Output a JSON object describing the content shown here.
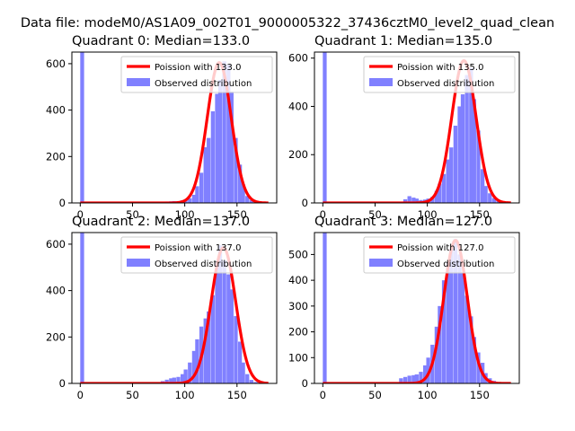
{
  "figure": {
    "suptitle": "Data file: modeM0/AS1A09_002T01_9000005322_37436cztM0_level2_quad_clean"
  },
  "chart_data": [
    {
      "type": "bar",
      "title": "Quadrant 0: Median=133.0",
      "xlim": [
        -8,
        188
      ],
      "ylim": [
        0,
        650
      ],
      "xticks": [
        0,
        50,
        100,
        150
      ],
      "yticks": [
        0,
        200,
        400,
        600
      ],
      "legend_placement": "top-right",
      "colors": {
        "hist": "#8080ff",
        "fit": "#ff0000"
      },
      "series": [
        {
          "name": "Poission with 133.0",
          "kind": "line",
          "mean": 133.0,
          "peak": 605,
          "sigma": 11.5,
          "x_range": [
            0,
            180
          ]
        },
        {
          "name": "Observed distribution",
          "kind": "hist",
          "bin_width": 3.7,
          "bars": [
            [
              0,
              650
            ],
            [
              77,
              5
            ],
            [
              81,
              6
            ],
            [
              85,
              7
            ],
            [
              88,
              8
            ],
            [
              92,
              8
            ],
            [
              96,
              11
            ],
            [
              99,
              14
            ],
            [
              103,
              20
            ],
            [
              107,
              35
            ],
            [
              110,
              72
            ],
            [
              114,
              130
            ],
            [
              118,
              240
            ],
            [
              121,
              280
            ],
            [
              125,
              395
            ],
            [
              129,
              470
            ],
            [
              132,
              530
            ],
            [
              136,
              610
            ],
            [
              140,
              595
            ],
            [
              143,
              480
            ],
            [
              147,
              280
            ],
            [
              151,
              165
            ],
            [
              154,
              80
            ],
            [
              158,
              30
            ],
            [
              162,
              12
            ],
            [
              166,
              5
            ],
            [
              170,
              3
            ]
          ]
        }
      ]
    },
    {
      "type": "bar",
      "title": "Quadrant 1: Median=135.0",
      "xlim": [
        -8,
        188
      ],
      "ylim": [
        0,
        625
      ],
      "xticks": [
        0,
        50,
        100,
        150
      ],
      "yticks": [
        0,
        200,
        400,
        600
      ],
      "legend_placement": "top-right",
      "colors": {
        "hist": "#8080ff",
        "fit": "#ff0000"
      },
      "series": [
        {
          "name": "Poission with 135.0",
          "kind": "line",
          "mean": 135.0,
          "peak": 590,
          "sigma": 11.6,
          "x_range": [
            0,
            180
          ]
        },
        {
          "name": "Observed distribution",
          "kind": "hist",
          "bin_width": 3.7,
          "bars": [
            [
              0,
              625
            ],
            [
              77,
              15
            ],
            [
              81,
              28
            ],
            [
              85,
              22
            ],
            [
              88,
              18
            ],
            [
              92,
              12
            ],
            [
              96,
              14
            ],
            [
              99,
              18
            ],
            [
              103,
              25
            ],
            [
              107,
              50
            ],
            [
              110,
              80
            ],
            [
              114,
              120
            ],
            [
              118,
              180
            ],
            [
              121,
              230
            ],
            [
              125,
              320
            ],
            [
              129,
              400
            ],
            [
              132,
              450
            ],
            [
              136,
              530
            ],
            [
              140,
              560
            ],
            [
              143,
              430
            ],
            [
              147,
              300
            ],
            [
              151,
              140
            ],
            [
              154,
              70
            ],
            [
              158,
              40
            ],
            [
              162,
              20
            ],
            [
              166,
              8
            ]
          ]
        }
      ]
    },
    {
      "type": "bar",
      "title": "Quadrant 2: Median=137.0",
      "xlim": [
        -8,
        188
      ],
      "ylim": [
        0,
        650
      ],
      "xticks": [
        0,
        50,
        100,
        150
      ],
      "yticks": [
        0,
        200,
        400,
        600
      ],
      "legend_placement": "top-right",
      "colors": {
        "hist": "#8080ff",
        "fit": "#ff0000"
      },
      "series": [
        {
          "name": "Poission with 137.0",
          "kind": "line",
          "mean": 137.0,
          "peak": 585,
          "sigma": 11.7,
          "x_range": [
            0,
            180
          ]
        },
        {
          "name": "Observed distribution",
          "kind": "hist",
          "bin_width": 3.7,
          "bars": [
            [
              0,
              650
            ],
            [
              77,
              10
            ],
            [
              81,
              16
            ],
            [
              85,
              22
            ],
            [
              88,
              25
            ],
            [
              92,
              28
            ],
            [
              96,
              40
            ],
            [
              99,
              60
            ],
            [
              103,
              90
            ],
            [
              107,
              140
            ],
            [
              110,
              190
            ],
            [
              114,
              245
            ],
            [
              118,
              280
            ],
            [
              121,
              310
            ],
            [
              125,
              380
            ],
            [
              129,
              520
            ],
            [
              132,
              595
            ],
            [
              136,
              530
            ],
            [
              140,
              470
            ],
            [
              143,
              405
            ],
            [
              147,
              290
            ],
            [
              151,
              180
            ],
            [
              154,
              90
            ],
            [
              158,
              40
            ],
            [
              162,
              15
            ],
            [
              166,
              6
            ]
          ]
        }
      ]
    },
    {
      "type": "bar",
      "title": "Quadrant 3: Median=127.0",
      "xlim": [
        -8,
        188
      ],
      "ylim": [
        0,
        585
      ],
      "xticks": [
        0,
        50,
        100,
        150
      ],
      "yticks": [
        0,
        100,
        200,
        300,
        400,
        500
      ],
      "legend_placement": "top-right",
      "colors": {
        "hist": "#8080ff",
        "fit": "#ff0000"
      },
      "series": [
        {
          "name": "Poission with 127.0",
          "kind": "line",
          "mean": 127.0,
          "peak": 555,
          "sigma": 11.2,
          "x_range": [
            0,
            180
          ]
        },
        {
          "name": "Observed distribution",
          "kind": "hist",
          "bin_width": 3.7,
          "bars": [
            [
              0,
              585
            ],
            [
              73,
              20
            ],
            [
              77,
              25
            ],
            [
              81,
              30
            ],
            [
              85,
              32
            ],
            [
              88,
              35
            ],
            [
              92,
              45
            ],
            [
              96,
              70
            ],
            [
              99,
              100
            ],
            [
              103,
              150
            ],
            [
              107,
              220
            ],
            [
              110,
              300
            ],
            [
              114,
              400
            ],
            [
              118,
              470
            ],
            [
              121,
              520
            ],
            [
              125,
              560
            ],
            [
              129,
              500
            ],
            [
              132,
              430
            ],
            [
              136,
              340
            ],
            [
              140,
              260
            ],
            [
              143,
              180
            ],
            [
              147,
              120
            ],
            [
              151,
              80
            ],
            [
              154,
              40
            ],
            [
              158,
              20
            ],
            [
              162,
              10
            ]
          ]
        }
      ]
    }
  ]
}
